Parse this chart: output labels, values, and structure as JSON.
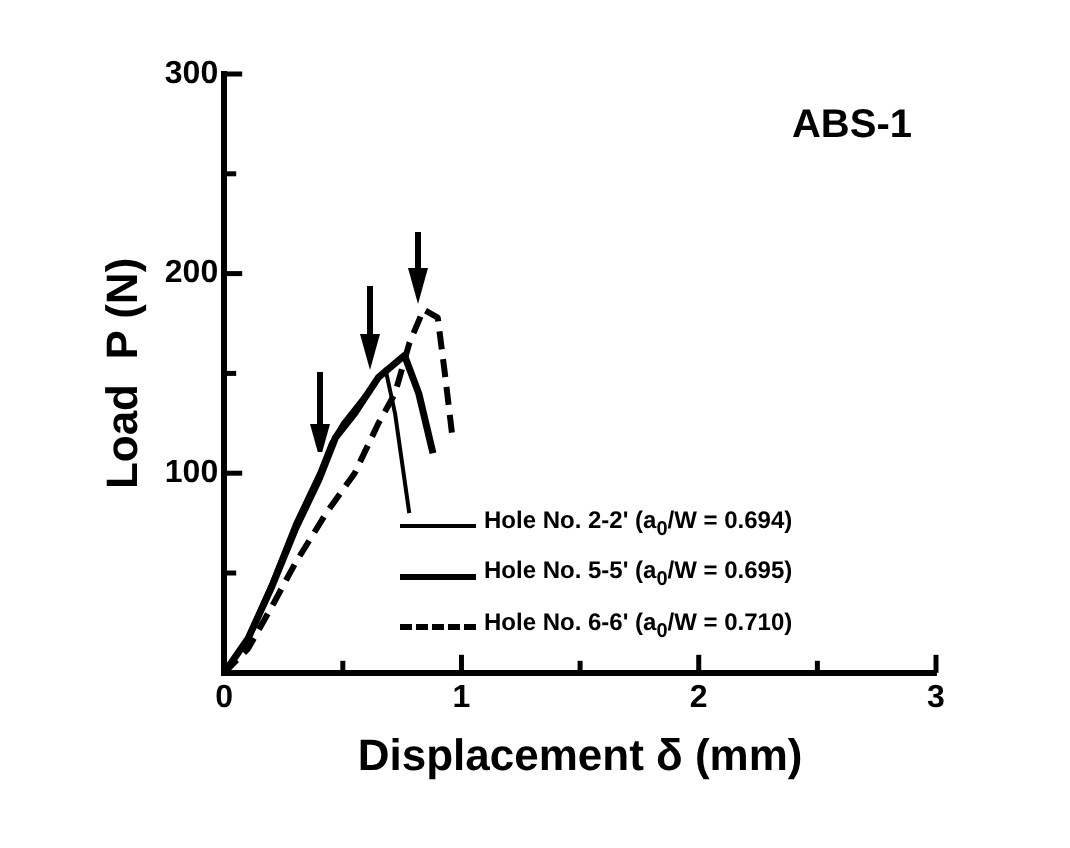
{
  "chart_data": {
    "type": "line",
    "xlabel": "Displacement δ (mm)",
    "ylabel": "Load  P (N)",
    "annotations": [
      "ABS-1"
    ],
    "xlim": [
      0,
      3
    ],
    "xticks": [
      0,
      {
        "value": 0.5,
        "label": null
      },
      1,
      {
        "value": 1.5,
        "label": null
      },
      2,
      {
        "value": 2.5,
        "label": null
      },
      3
    ],
    "ylim": [
      0,
      300
    ],
    "yticks": [
      {
        "value": 50,
        "label": null
      },
      100,
      {
        "value": 150,
        "label": null
      },
      200,
      {
        "value": 250,
        "label": null
      },
      300
    ],
    "grid": false,
    "legend": "bottom right",
    "marker": "none",
    "series": [
      {
        "name": "Hole No. 2-2' (a$_{0}$/W = 0.694)",
        "color": "#000000",
        "line_style": "solid",
        "x": [
          0,
          0.1,
          0.2,
          0.3,
          0.4,
          0.45,
          0.5,
          0.6,
          0.68,
          0.72,
          0.78
        ],
        "values": [
          0,
          18,
          45,
          75,
          100,
          115,
          125,
          140,
          152,
          130,
          80
        ]
      },
      {
        "name": "Hole No. 5-5' (a$_{0}$/W = 0.695)",
        "color": "#000000",
        "line_style": "solid",
        "x": [
          0,
          0.1,
          0.2,
          0.3,
          0.4,
          0.47,
          0.55,
          0.65,
          0.76,
          0.82,
          0.88
        ],
        "values": [
          0,
          17,
          43,
          72,
          97,
          118,
          130,
          148,
          159,
          140,
          110
        ]
      },
      {
        "name": "Hole No. 6-6' (a$_{0}$/W = 0.710)",
        "color": "#000000",
        "line_style": "dashed",
        "x": [
          0,
          0.1,
          0.2,
          0.3,
          0.43,
          0.55,
          0.65,
          0.72,
          0.78,
          0.84,
          0.9,
          0.93,
          0.96
        ],
        "values": [
          0,
          12,
          33,
          55,
          80,
          100,
          125,
          140,
          165,
          182,
          178,
          150,
          120
        ]
      }
    ]
  }
}
